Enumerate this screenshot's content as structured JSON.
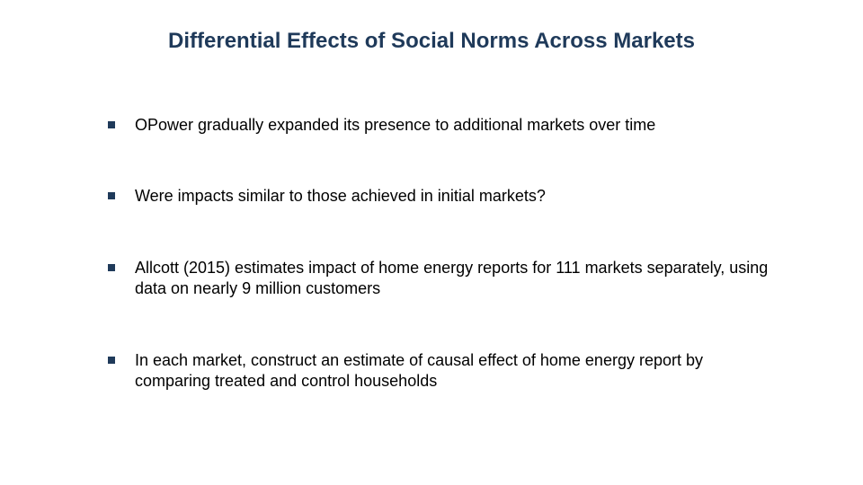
{
  "slide": {
    "title": "Differential Effects of Social Norms Across Markets",
    "title_color": "#1f3a5a",
    "title_fontsize": 24,
    "body_fontsize": 18,
    "body_color": "#000000",
    "bullet_color": "#1f3a5a",
    "background_color": "#ffffff",
    "bullets": [
      "OPower gradually expanded its presence to additional markets over time",
      "Were impacts similar to those achieved in initial markets?",
      "Allcott (2015) estimates impact of home energy reports for 111 markets separately, using data on nearly 9 million customers",
      "In each market, construct an estimate of causal effect of home energy report by comparing treated and control households"
    ]
  }
}
